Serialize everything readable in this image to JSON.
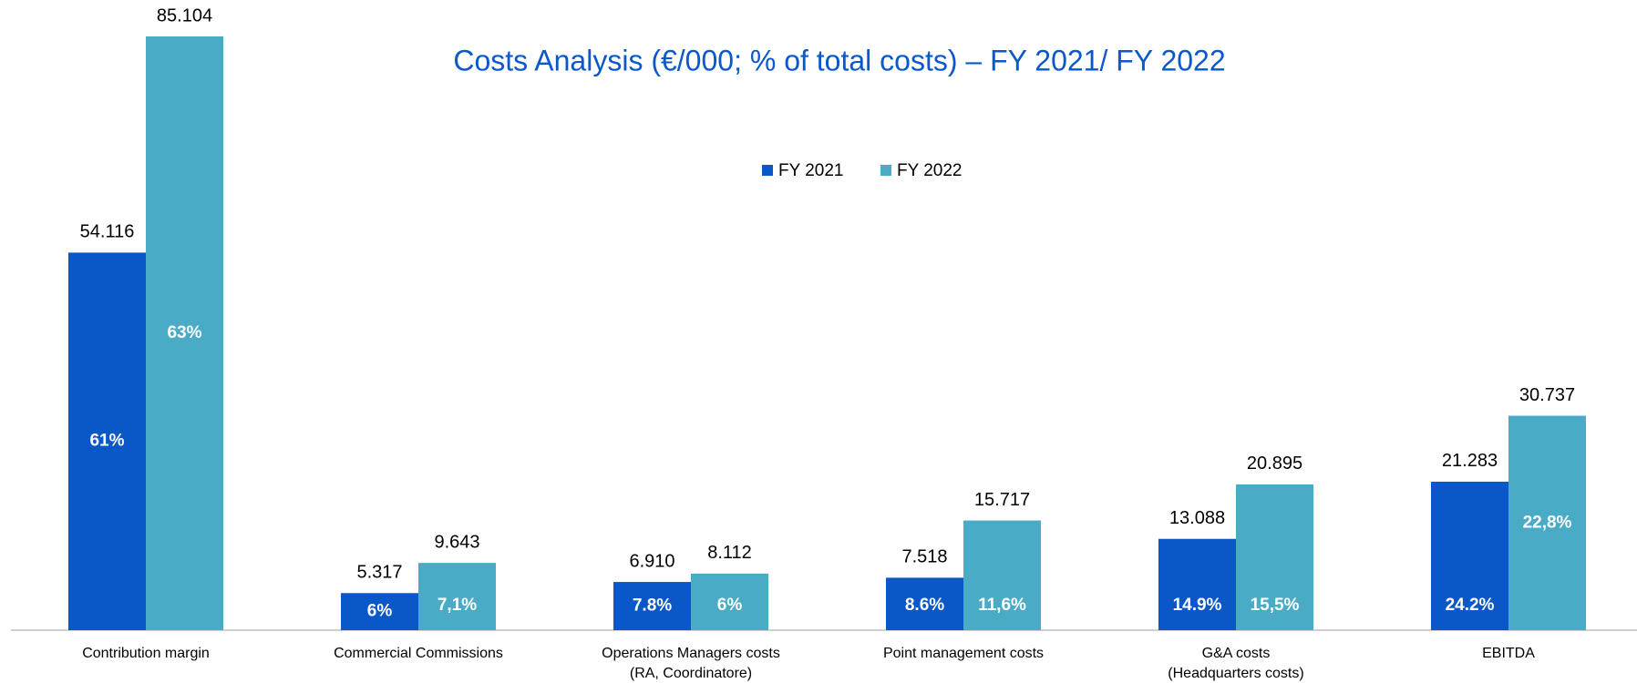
{
  "chart_data": {
    "type": "bar",
    "title": "Costs Analysis (€/000; % of total costs) – FY 2021/ FY 2022",
    "categories": [
      "Contribution margin",
      "Commercial Commissions",
      "Operations Managers costs\n(RA, Coordinatore)",
      "Point management costs",
      "G&A costs\n(Headquarters costs)",
      "EBITDA"
    ],
    "series": [
      {
        "name": "FY 2021",
        "color": "#0a57c8",
        "values": [
          54116,
          5317,
          6910,
          7518,
          13088,
          21283
        ],
        "value_labels": [
          "54.116",
          "5.317",
          "6.910",
          "7.518",
          "13.088",
          "21.283"
        ],
        "shares": [
          61,
          6,
          7.8,
          8.6,
          14.9,
          24.2
        ],
        "share_labels": [
          "61%",
          "6%",
          "7.8%",
          "8.6%",
          "14.9%",
          "24.2%"
        ]
      },
      {
        "name": "FY 2022",
        "color": "#4aabc7",
        "values": [
          85104,
          9643,
          8112,
          15717,
          20895,
          30737
        ],
        "value_labels": [
          "85.104",
          "9.643",
          "8.112",
          "15.717",
          "20.895",
          "30.737"
        ],
        "shares": [
          63,
          7.1,
          6,
          11.6,
          15.5,
          22.8
        ],
        "share_labels": [
          "63%",
          "7,1%",
          "6%",
          "11,6%",
          "15,5%",
          "22,8%"
        ]
      }
    ],
    "legend": "top"
  }
}
